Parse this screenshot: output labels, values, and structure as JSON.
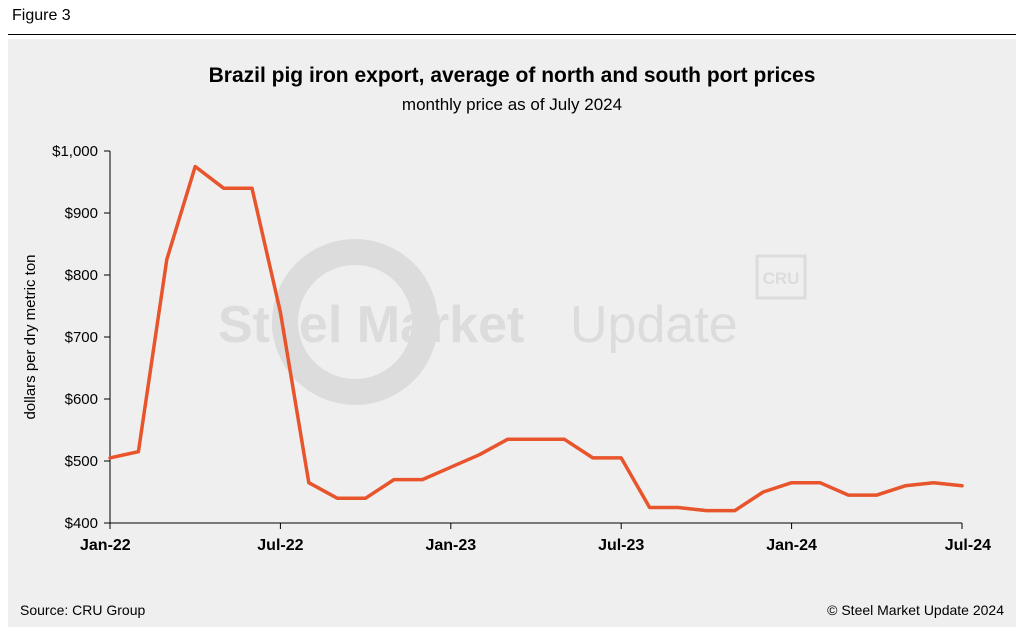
{
  "figure_label": "Figure 3",
  "source": "Source: CRU Group",
  "copyright": "© Steel Market Update 2024",
  "watermark": {
    "text_bold": "Steel Market",
    "text_light": "Update",
    "badge": "CRU"
  },
  "colors": {
    "line": "#e8552d",
    "panel": "#efefef",
    "watermark": "#dcdcdc"
  },
  "chart_data": {
    "type": "line",
    "title": "Brazil pig iron export, average of north and south port prices",
    "subtitle": "monthly price as of July 2024",
    "ylabel": "dollars per dry metric ton",
    "xlabel": "",
    "ylim": [
      400,
      1000
    ],
    "yticks": [
      1000,
      900,
      800,
      700,
      600,
      500,
      400
    ],
    "ytick_labels": [
      "$1,000",
      "$900",
      "$800",
      "$700",
      "$600",
      "$500",
      "$400"
    ],
    "xtick_labels": [
      "Jan-22",
      "Jul-22",
      "Jan-23",
      "Jul-23",
      "Jan-24",
      "Jul-24"
    ],
    "xtick_positions": [
      0,
      6,
      12,
      18,
      24,
      30
    ],
    "grid": false,
    "series": [
      {
        "values": [
          505,
          515,
          825,
          975,
          940,
          940,
          740,
          465,
          440,
          440,
          470,
          470,
          490,
          510,
          535,
          535,
          535,
          505,
          505,
          425,
          425,
          420,
          420,
          450,
          465,
          465,
          445,
          445,
          460,
          465,
          460
        ]
      }
    ]
  }
}
